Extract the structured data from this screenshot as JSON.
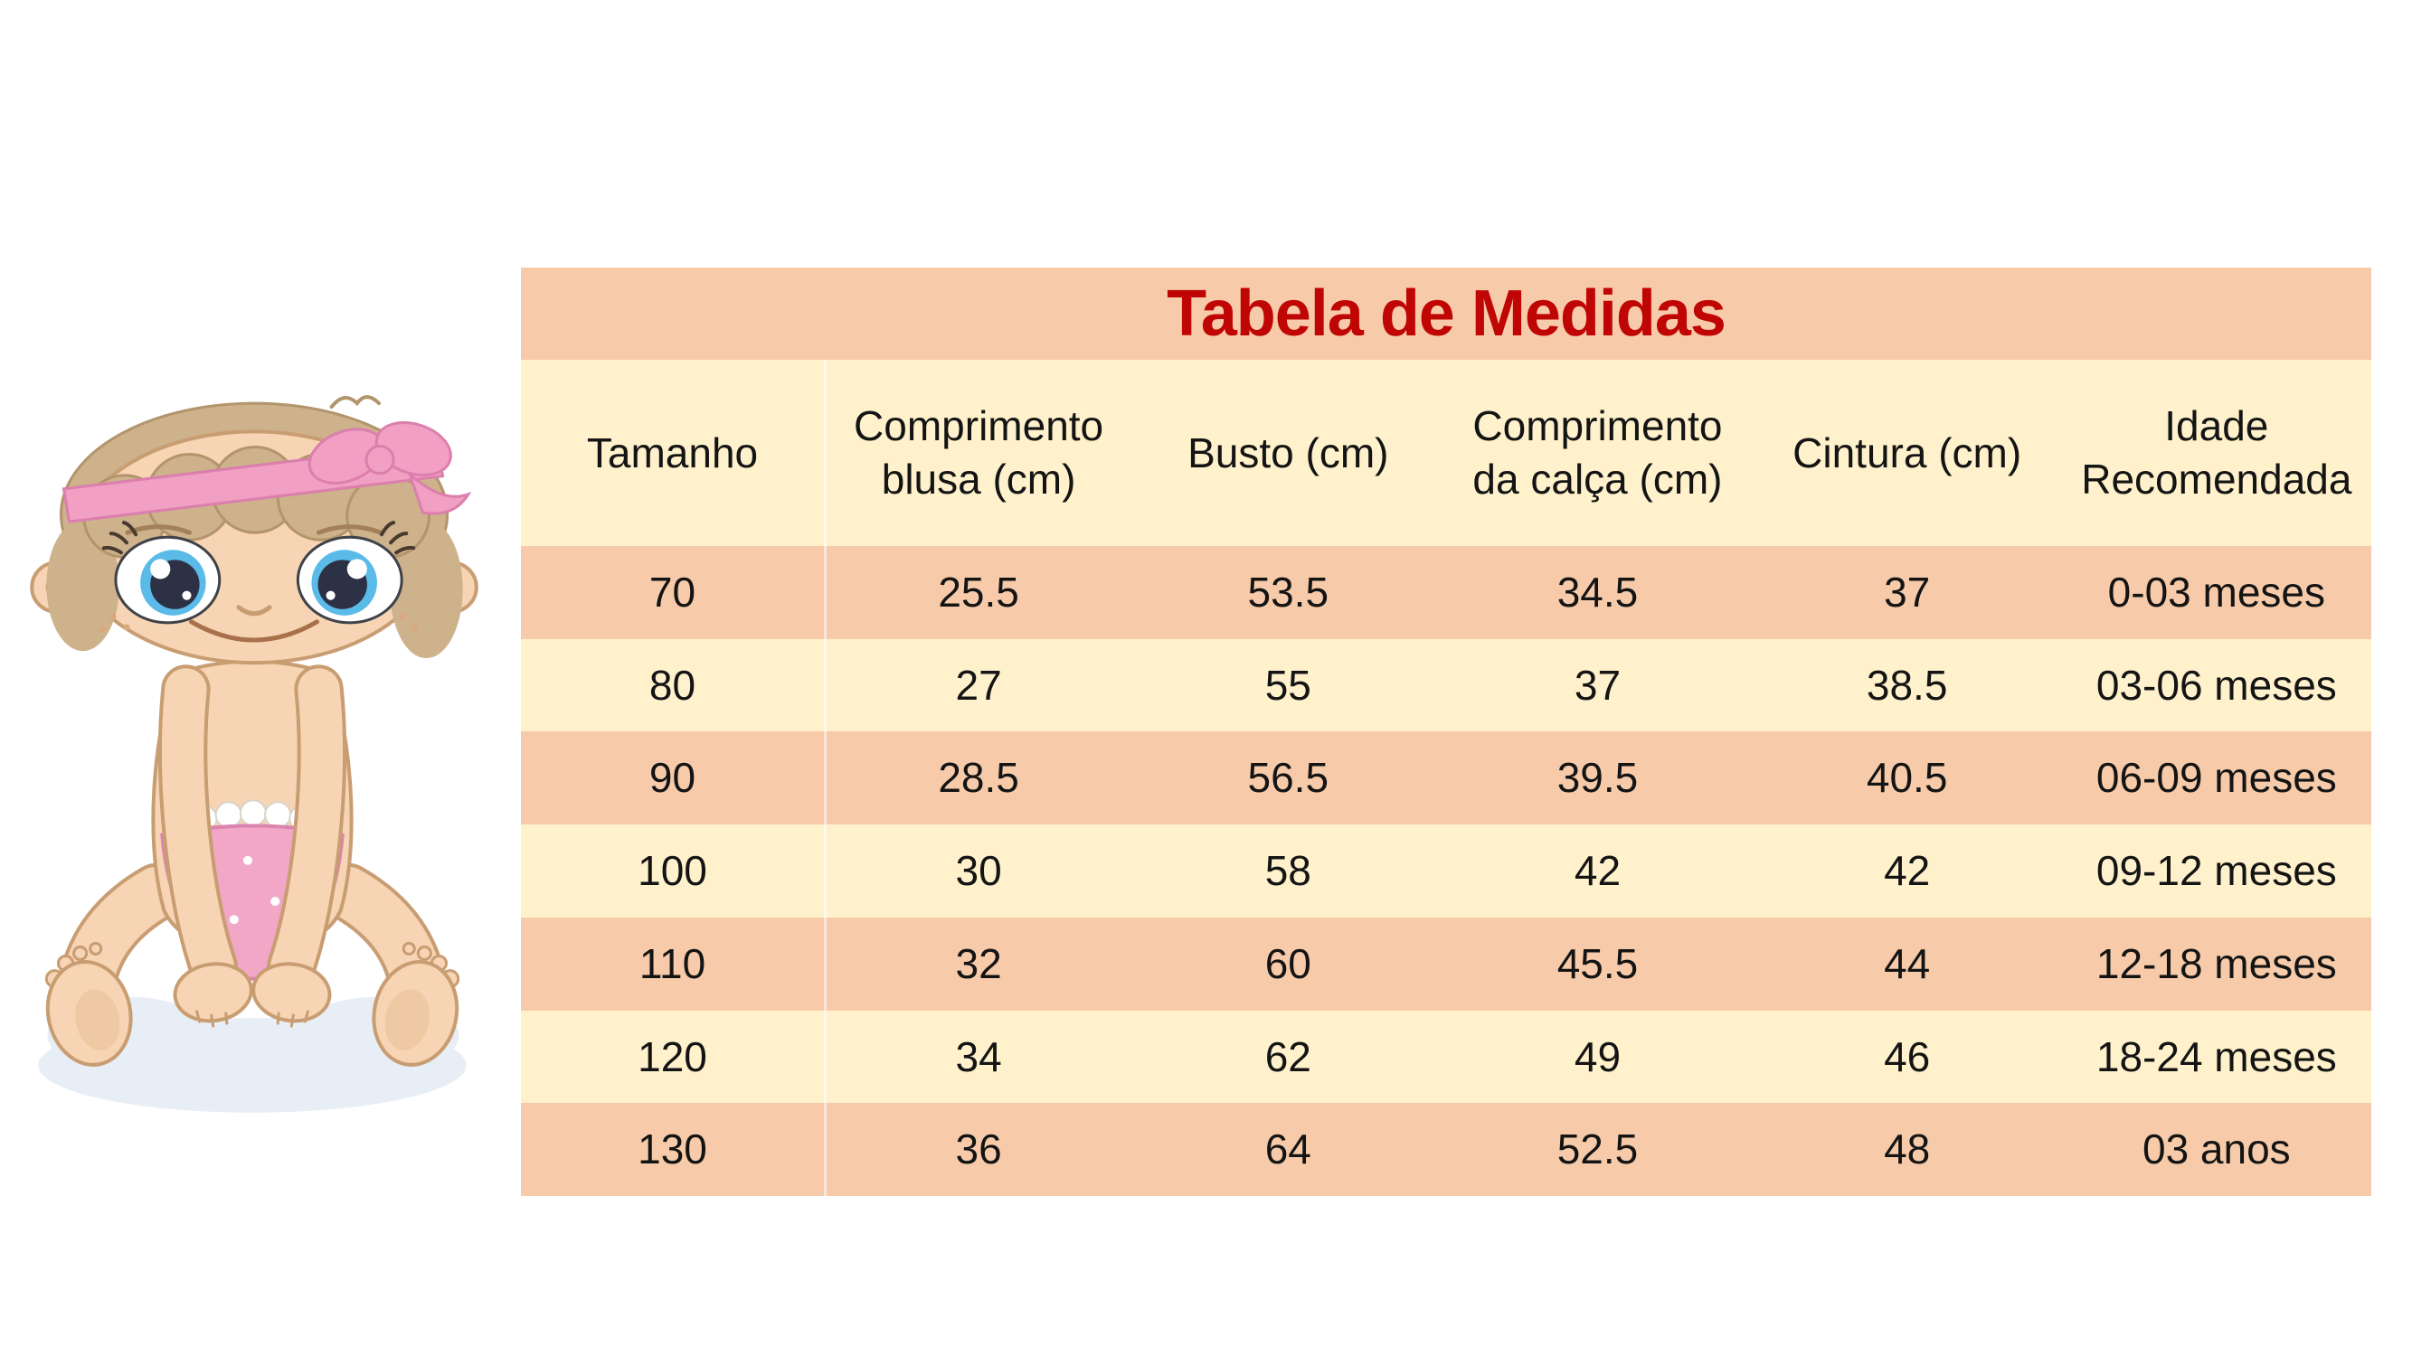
{
  "title": "Tabela de Medidas",
  "table": {
    "headers": [
      "Tamanho",
      "Comprimento blusa (cm)",
      "Busto (cm)",
      "Comprimento da calça (cm)",
      "Cintura (cm)",
      "Idade Recomendada"
    ],
    "rows": [
      [
        "70",
        "25.5",
        "53.5",
        "34.5",
        "37",
        "0-03 meses"
      ],
      [
        "80",
        "27",
        "55",
        "37",
        "38.5",
        "03-06 meses"
      ],
      [
        "90",
        "28.5",
        "56.5",
        "39.5",
        "40.5",
        "06-09 meses"
      ],
      [
        "100",
        "30",
        "58",
        "42",
        "42",
        "09-12 meses"
      ],
      [
        "110",
        "32",
        "60",
        "45.5",
        "44",
        "12-18 meses"
      ],
      [
        "120",
        "34",
        "62",
        "49",
        "46",
        "18-24 meses"
      ],
      [
        "130",
        "36",
        "64",
        "52.5",
        "48",
        "03 anos"
      ]
    ]
  },
  "colors": {
    "band_salmon": "#F7CBA9",
    "band_yellow": "#FEF1CB",
    "title_text": "#C00505",
    "cell_text": "#141414"
  },
  "illustration": {
    "name": "cartoon baby girl with pink bow headband and polka-dot diaper"
  }
}
